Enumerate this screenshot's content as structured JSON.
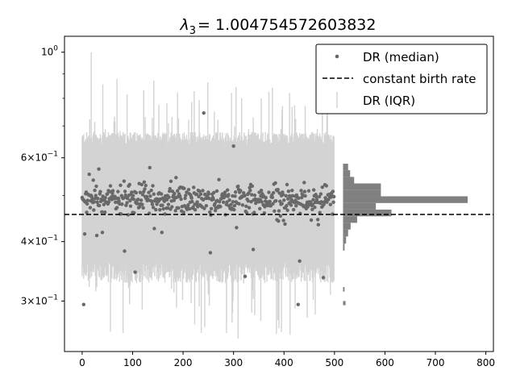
{
  "chart_data": {
    "type": "scatter",
    "title": "λ₃ = 1.004754572603832",
    "title_parts": {
      "symbol": "λ",
      "subscript": "3",
      "value": "= 1.004754572603832"
    },
    "xlabel": "",
    "ylabel": "",
    "xlim": [
      -35,
      815
    ],
    "ylim": [
      0.235,
      1.08
    ],
    "yscale": "log",
    "x_ticks": [
      {
        "value": 0,
        "label": "0"
      },
      {
        "value": 100,
        "label": "100"
      },
      {
        "value": 200,
        "label": "200"
      },
      {
        "value": 300,
        "label": "300"
      },
      {
        "value": 400,
        "label": "400"
      },
      {
        "value": 500,
        "label": "500"
      },
      {
        "value": 600,
        "label": "600"
      },
      {
        "value": 700,
        "label": "700"
      },
      {
        "value": 800,
        "label": "800"
      }
    ],
    "y_major_ticks": [
      {
        "value": 1.0,
        "base": "10",
        "exp": "0"
      },
      {
        "value": 0.6,
        "base": "6×10",
        "exp": "−1"
      },
      {
        "value": 0.4,
        "base": "4×10",
        "exp": "−1"
      },
      {
        "value": 0.3,
        "base": "3×10",
        "exp": "−1"
      }
    ],
    "y_minor_ticks": [
      0.5,
      0.7,
      0.8,
      0.9
    ],
    "grid": false,
    "legend": {
      "placement": "top-right",
      "entries": [
        "DR (median)",
        "constant birth rate",
        "DR (IQR)"
      ]
    },
    "constant_birth_rate": 0.456,
    "median_center": 0.49,
    "iqr_band": {
      "low": 0.345,
      "high": 0.66,
      "max_upper": 1.0,
      "min_lower": 0.25,
      "x_range": [
        0,
        500
      ]
    },
    "n_trees": 500,
    "highlight_points": [
      {
        "x": 3,
        "y": 0.295
      },
      {
        "x": 5,
        "y": 0.415
      },
      {
        "x": 29,
        "y": 0.412
      },
      {
        "x": 40,
        "y": 0.418
      },
      {
        "x": 84,
        "y": 0.382
      },
      {
        "x": 105,
        "y": 0.345
      },
      {
        "x": 143,
        "y": 0.426
      },
      {
        "x": 158,
        "y": 0.418
      },
      {
        "x": 241,
        "y": 0.745
      },
      {
        "x": 254,
        "y": 0.379
      },
      {
        "x": 300,
        "y": 0.635
      },
      {
        "x": 306,
        "y": 0.428
      },
      {
        "x": 323,
        "y": 0.338
      },
      {
        "x": 339,
        "y": 0.385
      },
      {
        "x": 399,
        "y": 0.443
      },
      {
        "x": 428,
        "y": 0.295
      },
      {
        "x": 431,
        "y": 0.364
      },
      {
        "x": 468,
        "y": 0.434
      },
      {
        "x": 478,
        "y": 0.336
      },
      {
        "x": 33,
        "y": 0.568
      },
      {
        "x": 14,
        "y": 0.554
      },
      {
        "x": 134,
        "y": 0.572
      },
      {
        "x": 186,
        "y": 0.545
      }
    ],
    "histogram": {
      "x_start": 517,
      "bins": [
        {
          "y_low": 0.294,
          "y_high": 0.3,
          "count": 5
        },
        {
          "y_low": 0.314,
          "y_high": 0.321,
          "count": 3
        },
        {
          "y_low": 0.383,
          "y_high": 0.396,
          "count": 3
        },
        {
          "y_low": 0.396,
          "y_high": 0.41,
          "count": 6
        },
        {
          "y_low": 0.41,
          "y_high": 0.424,
          "count": 10
        },
        {
          "y_low": 0.424,
          "y_high": 0.438,
          "count": 15
        },
        {
          "y_low": 0.438,
          "y_high": 0.452,
          "count": 28
        },
        {
          "y_low": 0.452,
          "y_high": 0.467,
          "count": 96
        },
        {
          "y_low": 0.467,
          "y_high": 0.482,
          "count": 65
        },
        {
          "y_low": 0.482,
          "y_high": 0.498,
          "count": 247
        },
        {
          "y_low": 0.498,
          "y_high": 0.514,
          "count": 75
        },
        {
          "y_low": 0.514,
          "y_high": 0.53,
          "count": 75
        },
        {
          "y_low": 0.53,
          "y_high": 0.547,
          "count": 22
        },
        {
          "y_low": 0.547,
          "y_high": 0.565,
          "count": 14
        },
        {
          "y_low": 0.565,
          "y_high": 0.583,
          "count": 10
        }
      ]
    },
    "colors": {
      "median": "#686868",
      "iqr": "#d3d3d3",
      "histogram": "#808080",
      "birth_rate_line": "#000000"
    }
  }
}
